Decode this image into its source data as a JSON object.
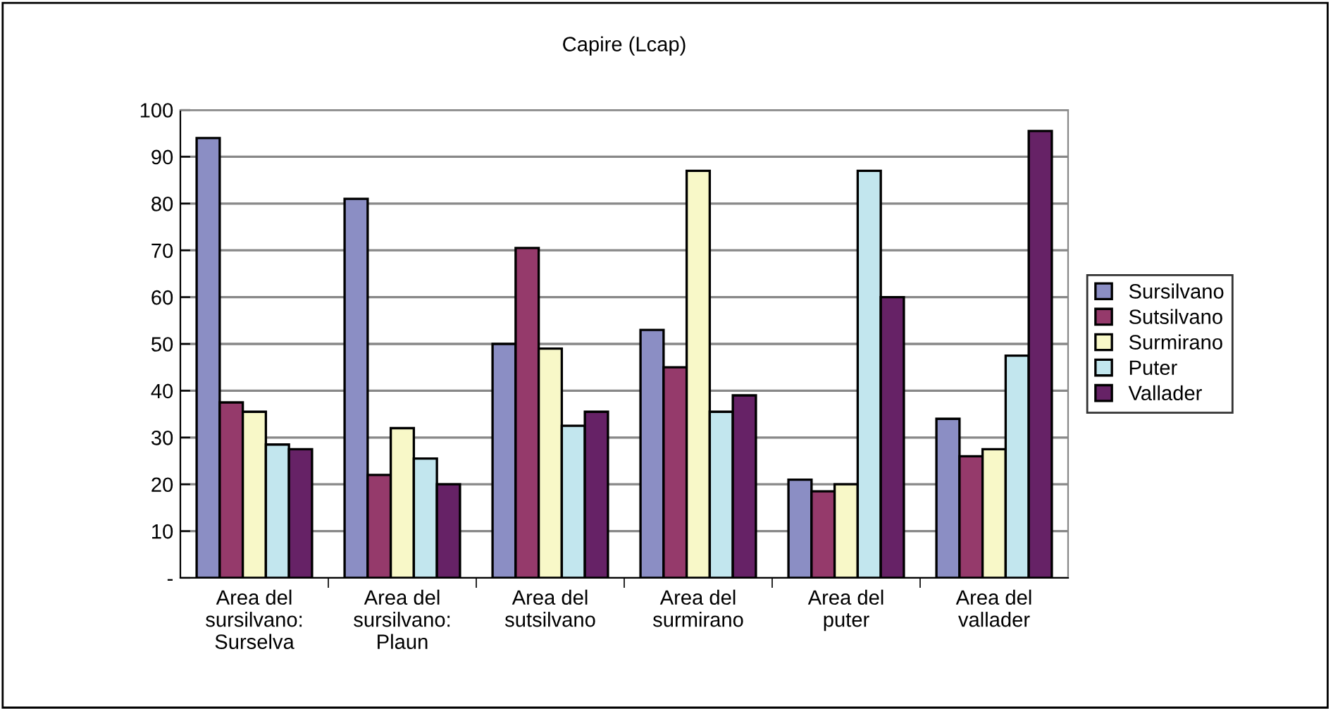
{
  "chart_data": {
    "type": "bar",
    "title": "Capire (Lcap)",
    "categories": [
      "Area del\nsursilvano:\nSurselva",
      "Area del\nsursilvano:\nPlaun",
      "Area del\nsutsilvano",
      "Area del\nsurmirano",
      "Area del\nputer",
      "Area del\nvallader"
    ],
    "series": [
      {
        "name": "Sursilvano",
        "color": "#8b8ec4",
        "values": [
          94,
          81,
          50,
          53,
          21,
          34
        ]
      },
      {
        "name": "Sutsilvano",
        "color": "#953a6b",
        "values": [
          37.5,
          22,
          70.5,
          45,
          18.5,
          26
        ]
      },
      {
        "name": "Surmirano",
        "color": "#f8f8c8",
        "values": [
          35.5,
          32,
          49,
          87,
          20,
          27.5
        ]
      },
      {
        "name": "Puter",
        "color": "#c2e6ee",
        "values": [
          28.5,
          25.5,
          32.5,
          35.5,
          87,
          47.5
        ]
      },
      {
        "name": "Vallader",
        "color": "#662266",
        "values": [
          27.5,
          20,
          35.5,
          39,
          60,
          95.5
        ]
      }
    ],
    "ylim": [
      0,
      100
    ],
    "yticks": [
      {
        "value": 0,
        "label": "-"
      },
      10,
      20,
      30,
      40,
      50,
      60,
      70,
      80,
      90,
      100
    ],
    "grid": "y",
    "legend": "right"
  }
}
